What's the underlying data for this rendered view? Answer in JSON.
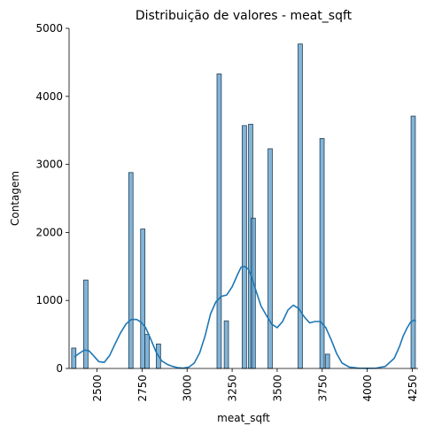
{
  "chart_data": {
    "type": "bar",
    "subtype": "histogram-with-kde",
    "title": "Distribuição de valores - meat_sqft",
    "xlabel": "meat_sqft",
    "ylabel": "Contagem",
    "xlim": [
      2345,
      4282
    ],
    "ylim": [
      0,
      5000
    ],
    "xticks": [
      2500,
      2750,
      3000,
      3250,
      3500,
      3750,
      4000,
      4250
    ],
    "yticks": [
      0,
      1000,
      2000,
      3000,
      4000,
      5000
    ],
    "bin_width": 24,
    "bins": [
      {
        "x": 2371,
        "count": 300
      },
      {
        "x": 2438,
        "count": 1300
      },
      {
        "x": 2688,
        "count": 2880
      },
      {
        "x": 2754,
        "count": 2050
      },
      {
        "x": 2778,
        "count": 500
      },
      {
        "x": 2841,
        "count": 360
      },
      {
        "x": 3178,
        "count": 4330
      },
      {
        "x": 3218,
        "count": 700
      },
      {
        "x": 3318,
        "count": 3570
      },
      {
        "x": 3353,
        "count": 3590
      },
      {
        "x": 3367,
        "count": 2210
      },
      {
        "x": 3461,
        "count": 3230
      },
      {
        "x": 3628,
        "count": 4770
      },
      {
        "x": 3749,
        "count": 3380
      },
      {
        "x": 3779,
        "count": 210
      },
      {
        "x": 4255,
        "count": 3710
      }
    ],
    "kde": {
      "x": [
        2375,
        2400,
        2430,
        2455,
        2480,
        2510,
        2540,
        2570,
        2600,
        2630,
        2660,
        2690,
        2720,
        2745,
        2770,
        2800,
        2830,
        2860,
        2890,
        2920,
        2950,
        2980,
        3010,
        3040,
        3070,
        3100,
        3130,
        3160,
        3190,
        3220,
        3250,
        3280,
        3300,
        3320,
        3340,
        3360,
        3380,
        3410,
        3440,
        3470,
        3500,
        3530,
        3560,
        3590,
        3620,
        3650,
        3680,
        3710,
        3740,
        3770,
        3800,
        3830,
        3860,
        3900,
        3950,
        4000,
        4050,
        4100,
        4150,
        4180,
        4200,
        4220,
        4240,
        4260,
        4270
      ],
      "y": [
        170,
        220,
        270,
        260,
        190,
        100,
        90,
        190,
        360,
        520,
        650,
        720,
        720,
        680,
        600,
        420,
        230,
        110,
        60,
        30,
        10,
        5,
        20,
        80,
        230,
        480,
        800,
        980,
        1060,
        1080,
        1200,
        1380,
        1490,
        1500,
        1460,
        1330,
        1160,
        920,
        780,
        650,
        600,
        690,
        860,
        930,
        880,
        760,
        670,
        690,
        690,
        600,
        420,
        220,
        80,
        20,
        5,
        2,
        5,
        30,
        150,
        330,
        480,
        590,
        680,
        710,
        690
      ]
    }
  }
}
